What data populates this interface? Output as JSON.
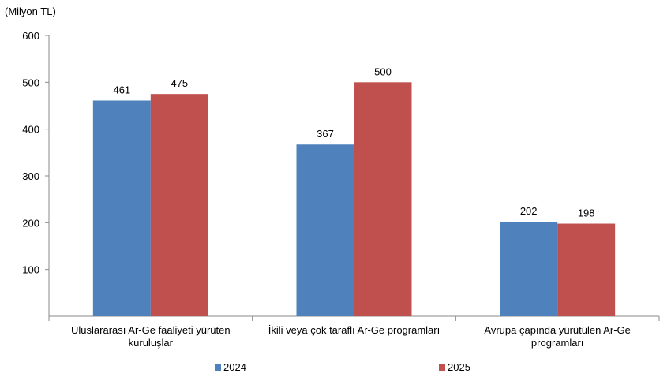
{
  "unit_label": "(Milyon TL)",
  "colors": {
    "series_2024": "#4F81BD",
    "series_2025": "#C0504D"
  },
  "chart_data": {
    "type": "bar",
    "categories": [
      "Uluslararası Ar-Ge faaliyeti yürüten kuruluşlar",
      "İkili veya çok taraflı Ar-Ge programları",
      "Avrupa çapında yürütülen Ar-Ge programları"
    ],
    "series": [
      {
        "name": "2024",
        "values": [
          461,
          367,
          202
        ]
      },
      {
        "name": "2025",
        "values": [
          475,
          500,
          198
        ]
      }
    ],
    "title": "",
    "xlabel": "",
    "ylabel": "(Milyon TL)",
    "ylim": [
      0,
      600
    ],
    "yticks": [
      100,
      200,
      300,
      400,
      500,
      600
    ],
    "grid": false,
    "legend": "bottom"
  }
}
